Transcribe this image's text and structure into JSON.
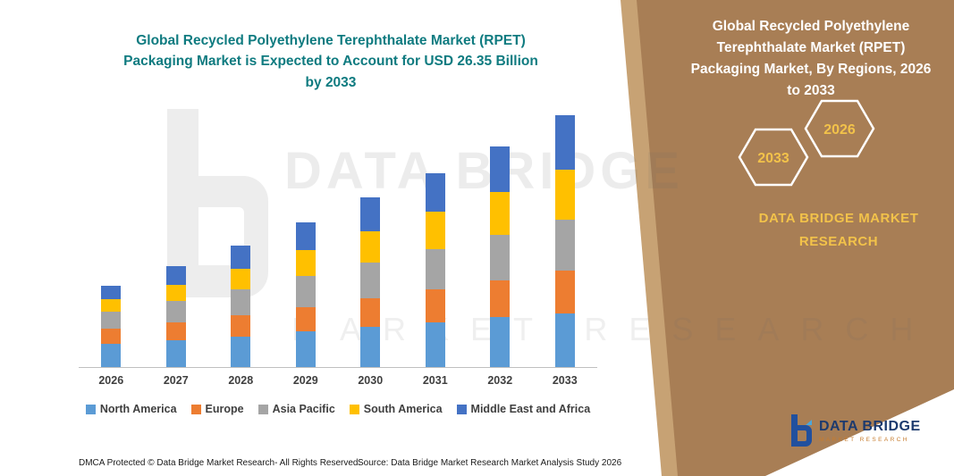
{
  "left_panel": {
    "title_lines": [
      "Global Recycled Polyethylene Terephthalate Market (RPET)",
      "Packaging Market is Expected to Account for USD 26.35 Billion",
      "by 2033"
    ],
    "title_color": "#0f7b80"
  },
  "right_panel": {
    "title_lines": [
      "Global Recycled Polyethylene",
      "Terephthalate Market (RPET)",
      "Packaging Market, By Regions, 2026",
      "to 2033"
    ],
    "hexagon_left": "2033",
    "hexagon_right": "2026",
    "brand_lines": [
      "DATA BRIDGE MARKET",
      "RESEARCH"
    ],
    "colors": {
      "panel": "#a87e55",
      "panel_light": "#c7a274",
      "accent_yellow": "#f2c24a"
    }
  },
  "watermark": {
    "big_text": "DATA BRIDGE",
    "sub_text": "MARKET RESEARCH"
  },
  "footer": {
    "dmca": "DMCA Protected © Data Bridge Market Research-  All Rights Reserved.",
    "source": "Source: Data Bridge Market Research  Market Analysis Study 2026"
  },
  "logo": {
    "name": "DATA BRIDGE",
    "tagline": "MARKET RESEARCH"
  },
  "chart_data": {
    "type": "bar",
    "stacked": true,
    "title": "Global Recycled Polyethylene Terephthalate Market (RPET) Packaging Market is Expected to Account for USD 26.35 Billion by 2033",
    "unit": "USD Billion",
    "total_2033": 26.35,
    "categories": [
      "2026",
      "2027",
      "2028",
      "2029",
      "2030",
      "2031",
      "2032",
      "2033"
    ],
    "series": [
      {
        "name": "North America",
        "color": "#5B9BD5",
        "values": [
          2.4,
          2.8,
          3.2,
          3.7,
          4.2,
          4.7,
          5.2,
          5.6
        ]
      },
      {
        "name": "Europe",
        "color": "#ED7D31",
        "values": [
          1.6,
          1.9,
          2.2,
          2.6,
          3.0,
          3.4,
          3.9,
          4.5
        ]
      },
      {
        "name": "Asia Pacific",
        "color": "#A5A5A5",
        "values": [
          1.8,
          2.2,
          2.7,
          3.2,
          3.7,
          4.2,
          4.7,
          5.3
        ]
      },
      {
        "name": "South America",
        "color": "#FFC000",
        "values": [
          1.3,
          1.7,
          2.2,
          2.7,
          3.3,
          3.9,
          4.5,
          5.2
        ]
      },
      {
        "name": "Middle East and Africa",
        "color": "#4472C4",
        "values": [
          1.4,
          1.9,
          2.4,
          2.9,
          3.5,
          4.1,
          4.8,
          5.75
        ]
      }
    ],
    "ylim": [
      0,
      28
    ],
    "legend_position": "bottom",
    "gridlines": false,
    "x_axis_labels_shown": true,
    "y_axis_labels_shown": false
  }
}
